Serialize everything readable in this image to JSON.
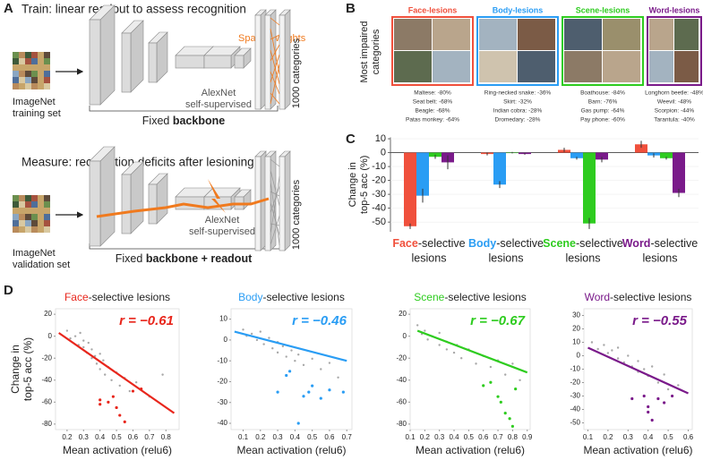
{
  "panels": [
    "A",
    "B",
    "C",
    "D"
  ],
  "panel_a": {
    "train_title": "Train: linear readout to assess recognition",
    "measure_title": "Measure: recognition deficits after lesioning",
    "sparse_weights": "Sparse weights",
    "train_set": [
      "ImageNet",
      "training set"
    ],
    "val_set": [
      "ImageNet",
      "validation set"
    ],
    "network": [
      "AlexNet",
      "self-supervised"
    ],
    "output": "1000 categories",
    "fixed_top": [
      "Fixed",
      "backbone"
    ],
    "fixed_bottom": [
      "Fixed",
      "backbone + readout"
    ]
  },
  "panel_b": {
    "ylabel": [
      "Most impaired",
      "categories"
    ],
    "lists": [
      [
        "Maltese: -80%",
        "Seat belt: -68%",
        "Beagle: -68%",
        "Patas monkey: -64%"
      ],
      [
        "Ring-necked snake: -36%",
        "Skirt: -32%",
        "Indian cobra: -28%",
        "Dromedary: -28%"
      ],
      [
        "Boathouse: -84%",
        "Barn: -76%",
        "Gas pump: -64%",
        "Pay phone: -60%"
      ],
      [
        "Longhorn beetle: -48%",
        "Weevil: -48%",
        "Scorpion: -44%",
        "Tarantula: -40%"
      ]
    ]
  },
  "chart_data": [
    {
      "type": "bar",
      "ylabel": [
        "Change in",
        "top-5 acc (%)"
      ],
      "categories": [
        "Face",
        "Body",
        "Scene",
        "Word"
      ],
      "category_suffix": "-selective",
      "category_line2": "lesions",
      "series": [
        {
          "name": "Face-lesions",
          "color": "#f0503c",
          "values": [
            -53,
            -1,
            2,
            6
          ],
          "errors": [
            2,
            1,
            1.5,
            2.5
          ]
        },
        {
          "name": "Body-lesions",
          "color": "#2a9df4",
          "values": [
            -31,
            -23,
            -4,
            -2
          ],
          "errors": [
            5,
            2.5,
            1,
            1.5
          ]
        },
        {
          "name": "Scene-lesions",
          "color": "#2ecc1f",
          "values": [
            -3,
            0,
            -51,
            -4
          ],
          "errors": [
            1.5,
            0.5,
            4,
            1
          ]
        },
        {
          "name": "Word-lesions",
          "color": "#7a1a8a",
          "values": [
            -7,
            -1,
            -5,
            -29
          ],
          "errors": [
            5,
            0.5,
            2,
            3
          ]
        }
      ],
      "ylim": [
        -57,
        11
      ],
      "yticks": [
        10,
        0,
        -10,
        -20,
        -30,
        -40,
        -50
      ]
    },
    {
      "type": "scatter",
      "title_prefix": "Face",
      "title_suffix": "-selective lesions",
      "title_color": "#e8261c",
      "annotation": "r = −0.61",
      "xlabel": "Mean activation (relu6)",
      "ylabel": [
        "Change in",
        "top-5 acc (%)"
      ],
      "series": [
        {
          "color": "#a8a8a8",
          "x": [
            0.2,
            0.22,
            0.25,
            0.27,
            0.28,
            0.3,
            0.3,
            0.32,
            0.33,
            0.35,
            0.35,
            0.37,
            0.38,
            0.4,
            0.4,
            0.42,
            0.43,
            0.45,
            0.47,
            0.5,
            0.52,
            0.55,
            0.58,
            0.62,
            0.7,
            0.78
          ],
          "values": [
            5,
            -2,
            0,
            -8,
            3,
            -10,
            -4,
            -15,
            -6,
            -20,
            -12,
            -18,
            -25,
            -30,
            -16,
            -22,
            -35,
            -28,
            -40,
            -33,
            -45,
            -38,
            -50,
            -42,
            -55,
            -35
          ]
        },
        {
          "color": "#e8261c",
          "x": [
            0.4,
            0.4,
            0.45,
            0.48,
            0.5,
            0.52,
            0.55,
            0.6,
            0.65
          ],
          "values": [
            -58,
            -62,
            -60,
            -55,
            -65,
            -72,
            -78,
            -50,
            -48
          ]
        }
      ],
      "fit": {
        "color": "#e8261c",
        "x": [
          0.15,
          0.85
        ],
        "values": [
          3,
          -70
        ]
      },
      "xlim": [
        0.13,
        0.88
      ],
      "xticks": [
        0.2,
        0.3,
        0.4,
        0.5,
        0.6,
        0.7,
        0.8
      ],
      "ylim": [
        -85,
        25
      ],
      "yticks": [
        20,
        0,
        -20,
        -40,
        -60,
        -80
      ]
    },
    {
      "type": "scatter",
      "title_prefix": "Body",
      "title_suffix": "-selective lesions",
      "title_color": "#2a9df4",
      "annotation": "r = −0.46",
      "xlabel": "Mean activation (relu6)",
      "series": [
        {
          "color": "#a8a8a8",
          "x": [
            0.1,
            0.12,
            0.15,
            0.18,
            0.2,
            0.22,
            0.25,
            0.27,
            0.3,
            0.3,
            0.33,
            0.35,
            0.38,
            0.4,
            0.42,
            0.45,
            0.5,
            0.55,
            0.6,
            0.65
          ],
          "values": [
            5,
            2,
            3,
            0,
            4,
            -2,
            1,
            -4,
            -1,
            -6,
            -3,
            -8,
            -5,
            -10,
            -7,
            -12,
            -9,
            -14,
            -11,
            -18
          ]
        },
        {
          "color": "#2a9df4",
          "x": [
            0.3,
            0.35,
            0.37,
            0.42,
            0.45,
            0.48,
            0.5,
            0.55,
            0.6,
            0.68
          ],
          "values": [
            -25,
            -17,
            -15,
            -40,
            -27,
            -25,
            -22,
            -28,
            -24,
            -25
          ]
        }
      ],
      "fit": {
        "color": "#2a9df4",
        "x": [
          0.05,
          0.7
        ],
        "values": [
          4,
          -10
        ]
      },
      "xlim": [
        0.03,
        0.73
      ],
      "xticks": [
        0.1,
        0.2,
        0.3,
        0.4,
        0.5,
        0.6,
        0.7
      ],
      "ylim": [
        -43,
        15
      ],
      "yticks": [
        10,
        0,
        -10,
        -20,
        -30,
        -40
      ]
    },
    {
      "type": "scatter",
      "title_prefix": "Scene",
      "title_suffix": "-selective lesions",
      "title_color": "#2ecc1f",
      "annotation": "r = −0.67",
      "xlabel": "Mean activation (relu6)",
      "series": [
        {
          "color": "#a8a8a8",
          "x": [
            0.15,
            0.18,
            0.2,
            0.22,
            0.25,
            0.3,
            0.3,
            0.35,
            0.35,
            0.4,
            0.42,
            0.45,
            0.5,
            0.55,
            0.6,
            0.65,
            0.7,
            0.75,
            0.8,
            0.85
          ],
          "values": [
            10,
            2,
            5,
            -3,
            0,
            -8,
            3,
            -12,
            -5,
            -15,
            -8,
            -20,
            -12,
            -25,
            -18,
            -28,
            -22,
            -35,
            -25,
            -40
          ]
        },
        {
          "color": "#2ecc1f",
          "x": [
            0.6,
            0.65,
            0.7,
            0.72,
            0.75,
            0.78,
            0.8,
            0.82
          ],
          "values": [
            -45,
            -42,
            -55,
            -60,
            -70,
            -75,
            -82,
            -48
          ]
        }
      ],
      "fit": {
        "color": "#2ecc1f",
        "x": [
          0.15,
          0.9
        ],
        "values": [
          5,
          -33
        ]
      },
      "xlim": [
        0.1,
        0.92
      ],
      "xticks": [
        0.1,
        0.2,
        0.3,
        0.4,
        0.5,
        0.6,
        0.7,
        0.8,
        0.9
      ],
      "ylim": [
        -85,
        25
      ],
      "yticks": [
        20,
        0,
        -20,
        -40,
        -60,
        -80
      ]
    },
    {
      "type": "scatter",
      "title_prefix": "Word",
      "title_suffix": "-selective lesions",
      "title_color": "#7a1a8a",
      "annotation": "r = −0.55",
      "xlabel": "Mean activation (relu6)",
      "series": [
        {
          "color": "#a8a8a8",
          "x": [
            0.12,
            0.15,
            0.18,
            0.2,
            0.22,
            0.25,
            0.25,
            0.28,
            0.3,
            0.32,
            0.35,
            0.35,
            0.38,
            0.4,
            0.42,
            0.45,
            0.48,
            0.5,
            0.55
          ],
          "values": [
            10,
            5,
            8,
            2,
            4,
            -2,
            6,
            -5,
            0,
            -8,
            -4,
            -12,
            -10,
            -15,
            -8,
            -20,
            -14,
            -25,
            -22
          ]
        },
        {
          "color": "#7a1a8a",
          "x": [
            0.32,
            0.38,
            0.4,
            0.4,
            0.42,
            0.45,
            0.48,
            0.52
          ],
          "values": [
            -32,
            -30,
            -38,
            -42,
            -48,
            -32,
            -35,
            -30
          ]
        }
      ],
      "fit": {
        "color": "#7a1a8a",
        "x": [
          0.1,
          0.6
        ],
        "values": [
          6,
          -28
        ]
      },
      "xlim": [
        0.08,
        0.62
      ],
      "xticks": [
        0.1,
        0.2,
        0.3,
        0.4,
        0.5,
        0.6
      ],
      "ylim": [
        -55,
        35
      ],
      "yticks": [
        30,
        20,
        10,
        0,
        -10,
        -20,
        -30,
        -40,
        -50
      ]
    }
  ]
}
